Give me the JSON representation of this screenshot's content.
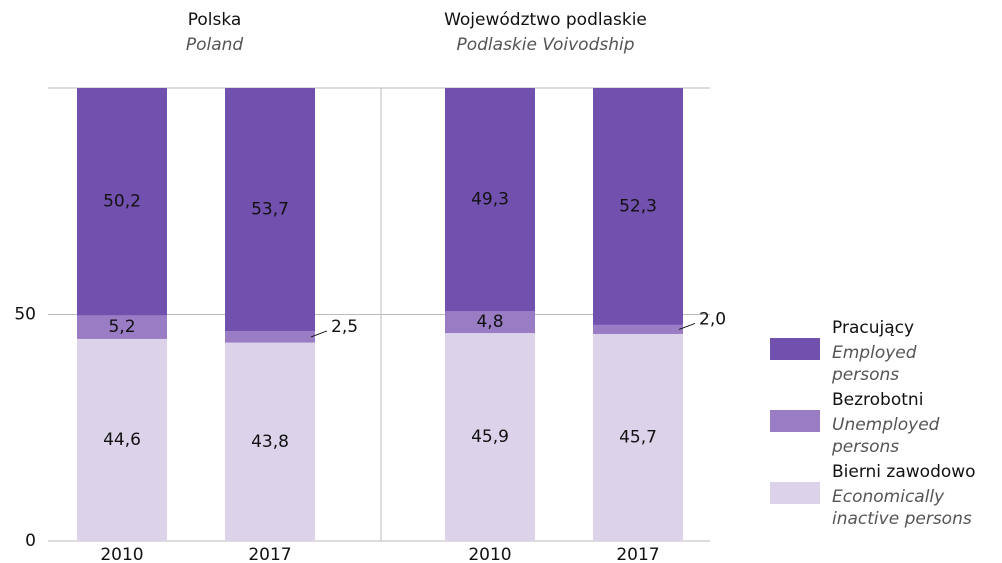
{
  "chart_data": [
    {
      "type": "bar",
      "stacked": true,
      "title": "Polska",
      "subtitle": "Poland",
      "categories": [
        "2010",
        "2017"
      ],
      "series": [
        {
          "name": "Pracujący",
          "name_en": "Employed persons",
          "color": "#7250ae",
          "values": [
            50.2,
            53.7
          ],
          "value_labels": [
            "50,2",
            "53,7"
          ]
        },
        {
          "name": "Bezrobotni",
          "name_en": "Unemployed persons",
          "color": "#9a7cc4",
          "values": [
            5.2,
            2.5
          ],
          "value_labels": [
            "5,2",
            "2,5"
          ]
        },
        {
          "name": "Bierni zawodowo",
          "name_en": "Economically inactive persons",
          "color": "#dcd3ea",
          "values": [
            44.6,
            43.8
          ],
          "value_labels": [
            "44,6",
            "43,8"
          ]
        }
      ],
      "ylim": [
        0,
        100
      ],
      "yticks": [
        0,
        50
      ],
      "grid": true,
      "legend": "right"
    },
    {
      "type": "bar",
      "stacked": true,
      "title": "Województwo podlaskie",
      "subtitle": "Podlaskie Voivodship",
      "categories": [
        "2010",
        "2017"
      ],
      "series": [
        {
          "name": "Pracujący",
          "color": "#7250ae",
          "values": [
            49.3,
            52.3
          ],
          "value_labels": [
            "49,3",
            "52,3"
          ]
        },
        {
          "name": "Bezrobotni",
          "color": "#9a7cc4",
          "values": [
            4.8,
            2.0
          ],
          "value_labels": [
            "4,8",
            "2,0"
          ]
        },
        {
          "name": "Bierni zawodowo",
          "color": "#dcd3ea",
          "values": [
            45.9,
            45.7
          ],
          "value_labels": [
            "45,9",
            "45,7"
          ]
        }
      ],
      "ylim": [
        0,
        100
      ]
    }
  ]
}
